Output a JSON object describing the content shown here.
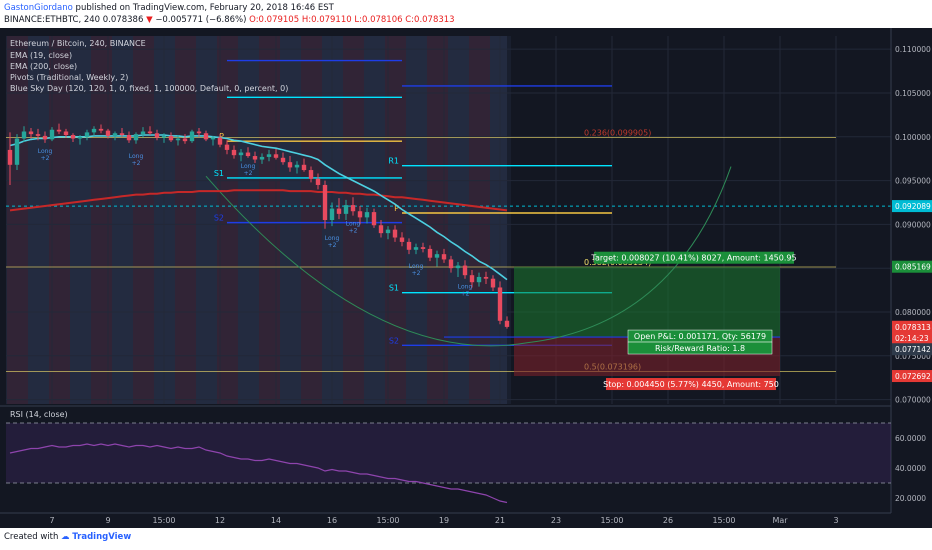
{
  "header": {
    "user": "GastonGiordano",
    "published_text": "published on TradingView.com, February 20, 2018 16:46 EST",
    "symbol": "BINANCE:ETHBTC, 240",
    "last": "0.078386",
    "change_arrow": "▼",
    "change": "−0.005771 (−6.86%)",
    "o": "O:0.079105",
    "h": "H:0.079110",
    "l": "L:0.078106",
    "c": "C:0.078313"
  },
  "legend": {
    "title": "Ethereum / Bitcoin, 240, BINANCE",
    "items": [
      "EMA (19, close)",
      "EMA (200, close)",
      "Pivots (Traditional, Weekly, 2)",
      "Blue Sky Day (120, 120, 1, 0, fixed, 1, 100000, Default, 0, percent, 0)"
    ]
  },
  "rsi": {
    "title": "RSI (14, close)",
    "levels": [
      70,
      30
    ]
  },
  "footer": {
    "prefix": "Created with",
    "brand": "TradingView"
  },
  "colors": {
    "bg": "#131722",
    "up": "#26a69a",
    "down": "#e84a5f",
    "ema19": "#4dd0e1",
    "ema200": "#c62828",
    "pivot": "#00e5ff",
    "pivot_s2": "#1e3de8",
    "target": "#1b7a2e",
    "stop": "#7a1f2a",
    "rsi": "#8e44ad",
    "fib": "#f5e16b"
  },
  "chart_data": [
    {
      "type": "candlestick",
      "price_axis": {
        "ticks": [
          "0.110000",
          "0.105000",
          "0.100000",
          "0.095000",
          "0.090000",
          "0.085000",
          "0.080000",
          "0.075000",
          "0.070000"
        ],
        "ylim": [
          0.0695,
          0.1115
        ],
        "flags": [
          {
            "label": "0.092089",
            "value": 0.092089,
            "color": "#00bcd4"
          },
          {
            "label": "0.085169",
            "value": 0.085169,
            "color": "#1b8f3a"
          },
          {
            "label": "0.078313",
            "value": 0.078313,
            "color": "#e53935"
          },
          {
            "label": "02:14:23",
            "value": 0.07705,
            "color": "#e53935"
          },
          {
            "label": "0.077142",
            "value": 0.07575,
            "color": "#2e3a4a"
          },
          {
            "label": "0.072692",
            "value": 0.072692,
            "color": "#e53935"
          }
        ]
      },
      "time_axis": {
        "labels": [
          "7",
          "9",
          "15:00",
          "12",
          "14",
          "16",
          "15:00",
          "19",
          "21",
          "23",
          "15:00",
          "26",
          "15:00",
          "Mar",
          "3"
        ],
        "positions_index": [
          6,
          14,
          22,
          30,
          38,
          46,
          54,
          62,
          70,
          78,
          86,
          94,
          102,
          110,
          118
        ]
      },
      "ohlc": [
        [
          0.0985,
          0.1005,
          0.0945,
          0.0968
        ],
        [
          0.0968,
          0.1003,
          0.0962,
          0.0998
        ],
        [
          0.0998,
          0.1012,
          0.0994,
          0.1006
        ],
        [
          0.1006,
          0.101,
          0.0998,
          0.1003
        ],
        [
          0.1003,
          0.1009,
          0.0996,
          0.1001
        ],
        [
          0.1001,
          0.1006,
          0.0993,
          0.0997
        ],
        [
          0.0997,
          0.1011,
          0.0995,
          0.1008
        ],
        [
          0.1008,
          0.1015,
          0.1003,
          0.1006
        ],
        [
          0.1006,
          0.1009,
          0.0999,
          0.1002
        ],
        [
          0.1002,
          0.1004,
          0.0994,
          0.0998
        ],
        [
          0.0998,
          0.1002,
          0.0991,
          0.1
        ],
        [
          0.1,
          0.1008,
          0.0996,
          0.1005
        ],
        [
          0.1005,
          0.1012,
          0.1001,
          0.1009
        ],
        [
          0.1009,
          0.1014,
          0.1004,
          0.1007
        ],
        [
          0.1007,
          0.1009,
          0.0998,
          0.1001
        ],
        [
          0.1001,
          0.1006,
          0.0996,
          0.1004
        ],
        [
          0.1004,
          0.101,
          0.1,
          0.1002
        ],
        [
          0.1002,
          0.1006,
          0.0993,
          0.0996
        ],
        [
          0.0996,
          0.1005,
          0.0992,
          0.1003
        ],
        [
          0.1003,
          0.1011,
          0.0999,
          0.1006
        ],
        [
          0.1006,
          0.1012,
          0.1002,
          0.1004
        ],
        [
          0.1004,
          0.1008,
          0.0996,
          0.0999
        ],
        [
          0.0999,
          0.1004,
          0.0993,
          0.1001
        ],
        [
          0.1001,
          0.1005,
          0.0994,
          0.0996
        ],
        [
          0.0996,
          0.1002,
          0.099,
          0.0998
        ],
        [
          0.0998,
          0.1003,
          0.0992,
          0.0995
        ],
        [
          0.0995,
          0.1008,
          0.0993,
          0.1006
        ],
        [
          0.1006,
          0.101,
          0.1,
          0.1004
        ],
        [
          0.1004,
          0.1007,
          0.0995,
          0.0997
        ],
        [
          0.0997,
          0.1001,
          0.099,
          0.0999
        ],
        [
          0.0999,
          0.1003,
          0.0988,
          0.0991
        ],
        [
          0.0991,
          0.0996,
          0.098,
          0.0985
        ],
        [
          0.0985,
          0.099,
          0.0975,
          0.0979
        ],
        [
          0.0979,
          0.0986,
          0.0972,
          0.0982
        ],
        [
          0.0982,
          0.0988,
          0.0976,
          0.0978
        ],
        [
          0.0978,
          0.0983,
          0.097,
          0.0974
        ],
        [
          0.0974,
          0.0981,
          0.0969,
          0.0977
        ],
        [
          0.0977,
          0.0985,
          0.0972,
          0.098
        ],
        [
          0.098,
          0.0986,
          0.0974,
          0.0976
        ],
        [
          0.0976,
          0.0982,
          0.0968,
          0.0971
        ],
        [
          0.0971,
          0.0978,
          0.096,
          0.0965
        ],
        [
          0.0965,
          0.0972,
          0.0958,
          0.0968
        ],
        [
          0.0968,
          0.0975,
          0.096,
          0.0962
        ],
        [
          0.0962,
          0.0966,
          0.0948,
          0.0952
        ],
        [
          0.0952,
          0.0958,
          0.094,
          0.0945
        ],
        [
          0.0945,
          0.095,
          0.0895,
          0.0905
        ],
        [
          0.0905,
          0.0925,
          0.0898,
          0.0918
        ],
        [
          0.0918,
          0.093,
          0.0906,
          0.0912
        ],
        [
          0.0912,
          0.0928,
          0.0905,
          0.0922
        ],
        [
          0.0922,
          0.0931,
          0.091,
          0.0915
        ],
        [
          0.0915,
          0.0921,
          0.09,
          0.0908
        ],
        [
          0.0908,
          0.0919,
          0.0901,
          0.0914
        ],
        [
          0.0914,
          0.0918,
          0.0896,
          0.0899
        ],
        [
          0.0899,
          0.0905,
          0.0885,
          0.089
        ],
        [
          0.089,
          0.0898,
          0.0883,
          0.0894
        ],
        [
          0.0894,
          0.0899,
          0.088,
          0.0885
        ],
        [
          0.0885,
          0.0891,
          0.0875,
          0.088
        ],
        [
          0.088,
          0.0884,
          0.0866,
          0.0871
        ],
        [
          0.0871,
          0.0878,
          0.0866,
          0.0874
        ],
        [
          0.0874,
          0.0879,
          0.0868,
          0.0872
        ],
        [
          0.0872,
          0.0876,
          0.0858,
          0.0862
        ],
        [
          0.0862,
          0.087,
          0.0852,
          0.0866
        ],
        [
          0.0866,
          0.0872,
          0.0856,
          0.086
        ],
        [
          0.086,
          0.0864,
          0.0845,
          0.085
        ],
        [
          0.085,
          0.0857,
          0.084,
          0.0853
        ],
        [
          0.0853,
          0.0859,
          0.0838,
          0.0842
        ],
        [
          0.0842,
          0.0848,
          0.0828,
          0.0834
        ],
        [
          0.0834,
          0.0845,
          0.0829,
          0.084
        ],
        [
          0.084,
          0.0846,
          0.0832,
          0.0838
        ],
        [
          0.0838,
          0.0842,
          0.0824,
          0.0828
        ],
        [
          0.0828,
          0.0835,
          0.0786,
          0.079
        ],
        [
          0.079,
          0.0795,
          0.0781,
          0.0783
        ]
      ],
      "ema19": [
        0.099,
        0.0992,
        0.0995,
        0.0997,
        0.0998,
        0.0998,
        0.0999,
        0.1,
        0.1,
        0.1,
        0.1,
        0.1,
        0.1001,
        0.1001,
        0.1001,
        0.1001,
        0.1001,
        0.1001,
        0.1001,
        0.1002,
        0.1002,
        0.1002,
        0.1002,
        0.1001,
        0.1001,
        0.1,
        0.1001,
        0.1001,
        0.1001,
        0.1,
        0.0999,
        0.0998,
        0.0996,
        0.0995,
        0.0993,
        0.0991,
        0.0989,
        0.0988,
        0.0987,
        0.0985,
        0.0983,
        0.0981,
        0.0979,
        0.0977,
        0.0974,
        0.0968,
        0.0963,
        0.0958,
        0.0954,
        0.095,
        0.0946,
        0.0942,
        0.0938,
        0.0933,
        0.0928,
        0.0923,
        0.0917,
        0.0912,
        0.0907,
        0.0902,
        0.0897,
        0.0891,
        0.0886,
        0.088,
        0.0875,
        0.0869,
        0.0864,
        0.0858,
        0.0854,
        0.0849,
        0.0843,
        0.0837
      ],
      "ema200": [
        0.0916,
        0.0917,
        0.0918,
        0.0919,
        0.092,
        0.0921,
        0.0922,
        0.0923,
        0.0924,
        0.0925,
        0.0926,
        0.0927,
        0.0928,
        0.0929,
        0.093,
        0.0931,
        0.0932,
        0.0933,
        0.0934,
        0.0934,
        0.0935,
        0.0935,
        0.0936,
        0.0936,
        0.0937,
        0.0937,
        0.0937,
        0.0938,
        0.0938,
        0.0938,
        0.0938,
        0.0938,
        0.0939,
        0.0939,
        0.0939,
        0.0939,
        0.0939,
        0.0939,
        0.0939,
        0.0939,
        0.0938,
        0.0938,
        0.0938,
        0.0938,
        0.0937,
        0.0937,
        0.0937,
        0.0936,
        0.0936,
        0.0935,
        0.0935,
        0.0934,
        0.0934,
        0.0933,
        0.0932,
        0.0931,
        0.0931,
        0.093,
        0.0929,
        0.0928,
        0.0927,
        0.0926,
        0.0925,
        0.0924,
        0.0923,
        0.0922,
        0.0921,
        0.092,
        0.0919,
        0.0918,
        0.0917,
        0.0916
      ],
      "pivots": [
        {
          "label": "P",
          "value": 0.0995,
          "from_index": 31,
          "to_index": 56,
          "color": "#f5c542"
        },
        {
          "label": "S1",
          "value": 0.0953,
          "from_index": 31,
          "to_index": 56,
          "color": "#00e5ff"
        },
        {
          "label": "S2",
          "value": 0.0902,
          "from_index": 31,
          "to_index": 56,
          "color": "#1e3de8"
        },
        {
          "label": "",
          "value": 0.1087,
          "from_index": 31,
          "to_index": 56,
          "color": "#1e3de8"
        },
        {
          "label": "",
          "value": 0.1045,
          "from_index": 31,
          "to_index": 56,
          "color": "#00e5ff"
        },
        {
          "label": "R1",
          "value": 0.0967,
          "from_index": 56,
          "to_index": 86,
          "color": "#00e5ff"
        },
        {
          "label": "P",
          "value": 0.0913,
          "from_index": 56,
          "to_index": 86,
          "color": "#f5c542"
        },
        {
          "label": "S1",
          "value": 0.0822,
          "from_index": 56,
          "to_index": 86,
          "color": "#00e5ff"
        },
        {
          "label": "",
          "value": 0.1058,
          "from_index": 56,
          "to_index": 86,
          "color": "#1e3de8"
        },
        {
          "label": "S2",
          "value": 0.0762,
          "from_index": 56,
          "to_index": 86,
          "color": "#1e3de8"
        }
      ],
      "fib_levels": [
        {
          "label": "0.236(0.099905)",
          "value": 0.099905
        },
        {
          "label": "0.382(0.085134)",
          "value": 0.085134
        },
        {
          "label": "0.5(0.073196)",
          "value": 0.073196
        }
      ],
      "position": {
        "entry": 0.077142,
        "target": 0.085169,
        "stop": 0.072692,
        "from_index": 72,
        "to_index": 110,
        "target_label": "Target: 0.008027 (10.41%) 8027, Amount: 1450.95",
        "open_label": "Open P&L: 0.001171, Qty: 56179",
        "ratio_label": "Risk/Reward Ratio: 1.8",
        "stop_label": "Stop: 0.004450 (5.77%) 4450, Amount: 750"
      },
      "signal_labels": [
        "Long",
        "+2"
      ]
    },
    {
      "type": "line",
      "title": "RSI (14, close)",
      "ylim": [
        10,
        80
      ],
      "ticks": [
        "60.0000",
        "40.0000",
        "20.0000"
      ],
      "values": [
        50,
        51,
        52,
        53,
        53,
        54,
        55,
        54,
        54,
        55,
        55,
        56,
        55,
        56,
        55,
        56,
        55,
        54,
        55,
        55,
        54,
        55,
        54,
        53,
        54,
        53,
        53,
        54,
        52,
        51,
        50,
        48,
        47,
        46,
        46,
        45,
        45,
        46,
        45,
        44,
        43,
        43,
        42,
        41,
        40,
        38,
        39,
        38,
        38,
        37,
        36,
        36,
        35,
        34,
        33,
        33,
        32,
        31,
        31,
        30,
        29,
        28,
        27,
        26,
        26,
        25,
        24,
        23,
        22,
        20,
        18,
        17
      ]
    }
  ]
}
